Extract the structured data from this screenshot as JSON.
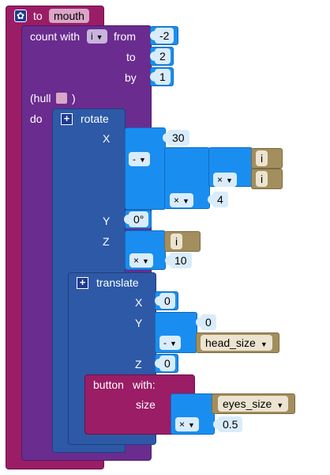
{
  "procedure": {
    "to_label": "to",
    "name": "mouth",
    "gear_icon": "gear-icon"
  },
  "count_loop": {
    "count_with_label": "count with",
    "var_name": "i",
    "from_label": "from",
    "from_value": "-2",
    "to_label": "to",
    "to_value": "2",
    "by_label": "by",
    "by_value": "1",
    "hull_open": "(hull",
    "hull_close": ")",
    "do_label": "do"
  },
  "rotate": {
    "label": "rotate",
    "x_label": "X",
    "x_value": "30",
    "minus_op": "-",
    "times_op_1": "×",
    "var_i_1": "i",
    "var_i_2": "i",
    "times_op_2": "×",
    "four_value": "4",
    "y_label": "Y",
    "y_value": "0°",
    "z_label": "Z",
    "var_i_3": "i",
    "times_op_3": "×",
    "ten_value": "10"
  },
  "translate": {
    "label": "translate",
    "x_label": "X",
    "x_value": "0",
    "y_label": "Y",
    "y_value": "0",
    "minus_op": "-",
    "head_size_var": "head_size",
    "z_label": "Z",
    "z_value": "0"
  },
  "button_call": {
    "label": "button",
    "with_label": "with:",
    "size_label": "size",
    "eyes_size_var": "eyes_size",
    "times_op": "×",
    "half_value": "0.5"
  },
  "colors": {
    "procedure": "#9a1d66",
    "loop": "#6a2c8f",
    "transform": "#2d59a7",
    "math": "#1a8ef0",
    "variable": "#a38e5d"
  }
}
